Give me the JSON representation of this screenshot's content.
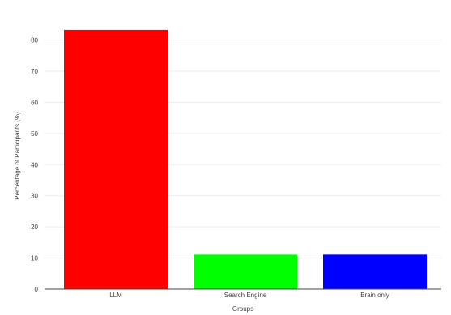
{
  "chart_data": {
    "type": "bar",
    "categories": [
      "LLM",
      "Search Engine",
      "Brain only"
    ],
    "values": [
      83.3,
      11.1,
      11.1
    ],
    "colors": [
      "#ff0000",
      "#00ff00",
      "#0000ff"
    ],
    "xlabel": "Groups",
    "ylabel": "Percentage of Participants (%)",
    "ylim": [
      0,
      87.7
    ],
    "yticks": [
      0,
      10,
      20,
      30,
      40,
      50,
      60,
      70,
      80
    ],
    "ytick_labels": [
      "0",
      "10",
      "20",
      "30",
      "40",
      "50",
      "60",
      "70",
      "80"
    ],
    "grid": true,
    "legend": "none"
  }
}
